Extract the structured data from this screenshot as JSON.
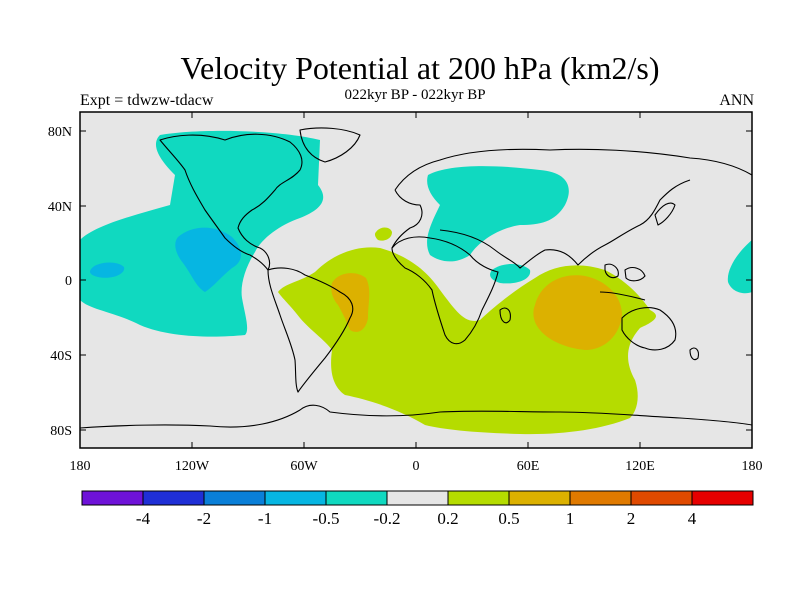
{
  "title": "Velocity Potential at 200 hPa (km2/s)",
  "subtitle": "022kyr BP - 022kyr BP",
  "left_label": "Expt = tdwzw-tdacw",
  "right_label": "ANN",
  "x_ticks": [
    "180",
    "120W",
    "60W",
    "0",
    "60E",
    "120E",
    "180"
  ],
  "y_ticks": [
    "80N",
    "40N",
    "0",
    "40S",
    "80S"
  ],
  "colorbar": {
    "colors": [
      "#6e12d8",
      "#1f2fd6",
      "#0a7fd8",
      "#06b6e2",
      "#10d9c0",
      "#e6e6e6",
      "#b5dc00",
      "#dcb100",
      "#e07a00",
      "#e04a00",
      "#e60000"
    ],
    "labels": [
      "-4",
      "-2",
      "-1",
      "-0.5",
      "-0.2",
      "0.2",
      "0.5",
      "1",
      "2",
      "4"
    ]
  },
  "colors": {
    "land_fill": "#e6e6e6",
    "neg_02": "#10d9c0",
    "neg_05": "#06b6e2",
    "pos_02": "#b5dc00",
    "pos_05": "#dcb100"
  }
}
